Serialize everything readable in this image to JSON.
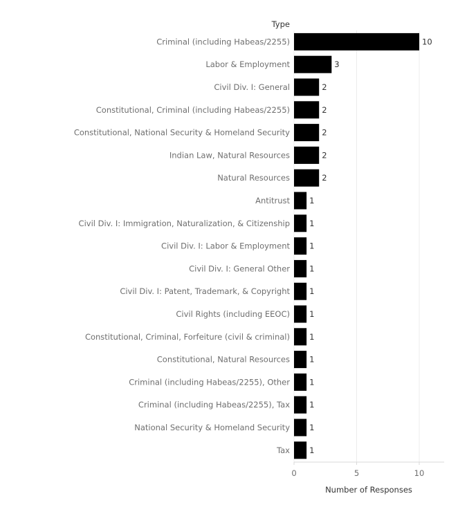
{
  "chart_data": {
    "type": "bar",
    "orientation": "horizontal",
    "dimension_header": "Type",
    "xlabel": "Number of Responses",
    "ylabel": "",
    "xlim": [
      0,
      12
    ],
    "xticks": [
      "0",
      "5",
      "10"
    ],
    "grid": "vertical gridlines",
    "bar_color": "#000000",
    "categories": [
      "Criminal (including Habeas/2255)",
      "Labor & Employment",
      "Civil Div. I: General",
      "Constitutional, Criminal (including Habeas/2255)",
      "Constitutional, National Security & Homeland Security",
      "Indian Law, Natural Resources",
      "Natural Resources",
      "Antitrust",
      "Civil Div. I:  Immigration, Naturalization, & Citizenship",
      "Civil Div. I:  Labor & Employment",
      "Civil Div. I: General Other",
      "Civil Div. I: Patent, Trademark, & Copyright",
      "Civil Rights (including EEOC)",
      "Constitutional, Criminal, Forfeiture (civil & criminal)",
      "Constitutional, Natural Resources",
      "Criminal (including Habeas/2255), Other",
      "Criminal (including Habeas/2255), Tax",
      "National Security & Homeland Security",
      "Tax"
    ],
    "values": [
      10,
      3,
      2,
      2,
      2,
      2,
      2,
      1,
      1,
      1,
      1,
      1,
      1,
      1,
      1,
      1,
      1,
      1,
      1
    ],
    "value_labels": [
      "10",
      "3",
      "2",
      "2",
      "2",
      "2",
      "2",
      "1",
      "1",
      "1",
      "1",
      "1",
      "1",
      "1",
      "1",
      "1",
      "1",
      "1",
      "1"
    ]
  }
}
